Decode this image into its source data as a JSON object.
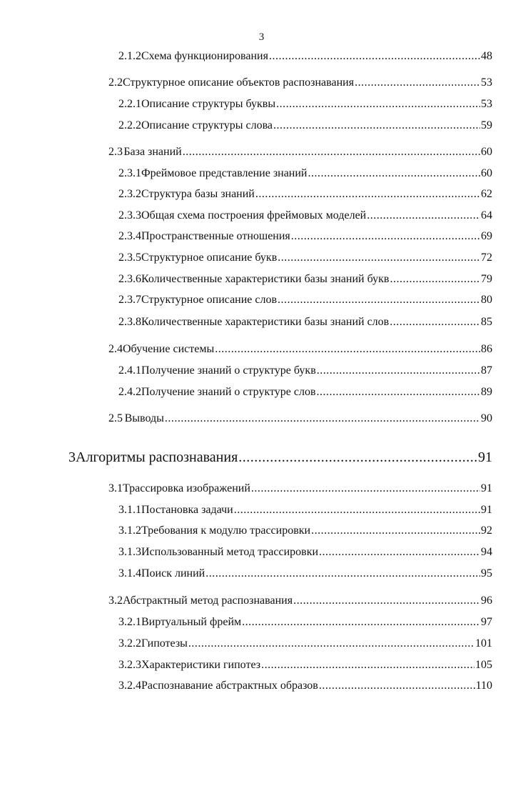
{
  "page_number": "3",
  "toc": [
    {
      "level": 3,
      "num": "2.1.2",
      "title": "Схема функционирования",
      "page": "48"
    },
    {
      "level": 2,
      "num": "2.2",
      "title": "Структурное описание объектов распознавания",
      "page": "53"
    },
    {
      "level": 3,
      "num": "2.2.1",
      "title": "Описание структуры буквы",
      "page": "53"
    },
    {
      "level": 3,
      "num": "2.2.2",
      "title": "Описание структуры слова",
      "page": "59"
    },
    {
      "level": 2,
      "num": "2.3",
      "title": "База знаний",
      "page": "60"
    },
    {
      "level": 3,
      "num": "2.3.1",
      "title": "Фреймовое представление знаний",
      "page": "60"
    },
    {
      "level": 3,
      "num": "2.3.2",
      "title": "Структура базы знаний",
      "page": "62"
    },
    {
      "level": 3,
      "num": "2.3.3",
      "title": "Общая схема построения фреймовых моделей",
      "page": "64"
    },
    {
      "level": 3,
      "num": "2.3.4",
      "title": "Пространственные отношения",
      "page": "69"
    },
    {
      "level": 3,
      "num": "2.3.5",
      "title": "Структурное описание букв",
      "page": "72"
    },
    {
      "level": 3,
      "num": "2.3.6",
      "title": "Количественные характеристики базы знаний букв",
      "page": "79"
    },
    {
      "level": 3,
      "num": "2.3.7",
      "title": "Структурное описание слов",
      "page": "80"
    },
    {
      "level": 3,
      "num": "2.3.8",
      "title": "Количественные характеристики базы знаний слов",
      "page": "85"
    },
    {
      "level": 2,
      "num": "2.4",
      "title": "Обучение системы",
      "page": "86"
    },
    {
      "level": 3,
      "num": "2.4.1",
      "title": "Получение знаний о структуре букв",
      "page": "87"
    },
    {
      "level": 3,
      "num": "2.4.2",
      "title": "Получение знаний о структуре слов",
      "page": "89"
    },
    {
      "level": 2,
      "num": "2.5",
      "title": "Выводы",
      "page": "90"
    },
    {
      "level": 1,
      "num": "3",
      "title": "Алгоритмы распознавания",
      "page": "91"
    },
    {
      "level": 2,
      "num": "3.1",
      "title": "Трассировка изображений",
      "page": "91"
    },
    {
      "level": 3,
      "num": "3.1.1",
      "title": "Постановка задачи",
      "page": "91"
    },
    {
      "level": 3,
      "num": "3.1.2",
      "title": "Требования к модулю трассировки",
      "page": "92"
    },
    {
      "level": 3,
      "num": "3.1.3",
      "title": "Использованный метод трассировки",
      "page": "94"
    },
    {
      "level": 3,
      "num": "3.1.4",
      "title": "Поиск линий",
      "page": "95"
    },
    {
      "level": 2,
      "num": "3.2",
      "title": "Абстрактный метод распознавания",
      "page": "96"
    },
    {
      "level": 3,
      "num": "3.2.1",
      "title": "Виртуальный фрейм",
      "page": "97"
    },
    {
      "level": 3,
      "num": "3.2.2",
      "title": "Гипотезы",
      "page": "101"
    },
    {
      "level": 3,
      "num": "3.2.3",
      "title": "Характеристики гипотез",
      "page": "105"
    },
    {
      "level": 3,
      "num": "3.2.4",
      "title": "Распознавание абстрактных образов",
      "page": "110"
    }
  ]
}
